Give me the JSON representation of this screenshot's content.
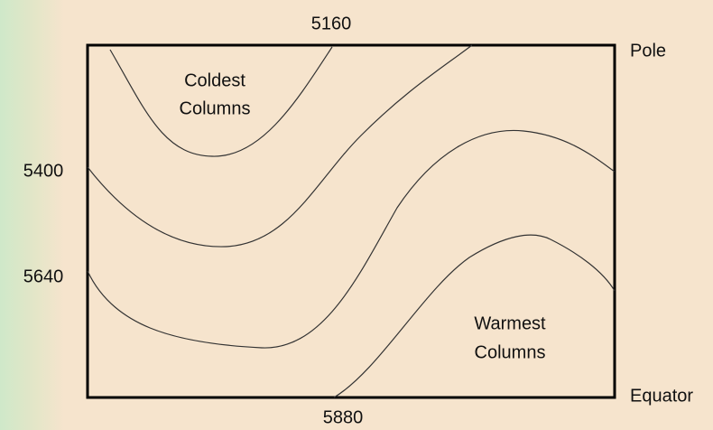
{
  "contours": [
    {
      "label": "5160"
    },
    {
      "label": "5400"
    },
    {
      "label": "5640"
    },
    {
      "label": "5880"
    }
  ],
  "edges": {
    "top": "Pole",
    "bottom": "Equator"
  },
  "regions": {
    "cold": [
      "Coldest",
      "Columns"
    ],
    "warm": [
      "Warmest",
      "Columns"
    ]
  }
}
